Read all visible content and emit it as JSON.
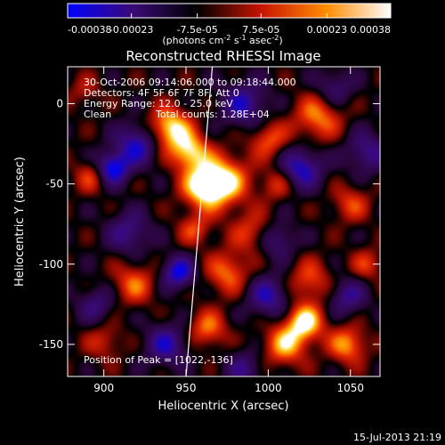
{
  "colorbar": {
    "ticks": [
      "-0.00038",
      "-0.00023",
      "-7.5e-05",
      "7.5e-05",
      "0.00023",
      "0.00038"
    ],
    "tick_values": [
      -0.00038,
      -0.00023,
      -7.5e-05,
      7.5e-05,
      0.00023,
      0.00038
    ],
    "range": [
      -0.00038,
      0.00038
    ],
    "unit_main": "(photons cm",
    "unit_exp1": "-2",
    "unit_mid": " s",
    "unit_exp2": "-1",
    "unit_tail": " asec",
    "unit_exp3": "-2",
    "unit_close": ")",
    "colors": [
      "#0000ff",
      "#3a0a78",
      "#000000",
      "#c81400",
      "#ff8c00",
      "#ffffff"
    ]
  },
  "chart_data": {
    "type": "heatmap",
    "title": "Reconstructed RHESSI Image",
    "xlabel": "Heliocentric X (arcsec)",
    "ylabel": "Heliocentric Y (arcsec)",
    "xlim": [
      878,
      1068
    ],
    "ylim": [
      -170,
      23
    ],
    "xticks": [
      900,
      950,
      1000,
      1050
    ],
    "yticks": [
      0,
      -50,
      -100,
      -150
    ],
    "grid": false,
    "annotations": {
      "time_range": "30-Oct-2006 09:14:06.000 to 09:18:44.000",
      "detectors": "Detectors: 4F 5F 6F 7F 8F, Att 0",
      "energy_range": "Energy Range: 12.0 - 25.0 keV",
      "clean_label": "Clean",
      "total_counts": "Total counts: 1.28E+04",
      "peak": "Position of Peak = [1022,-136]"
    },
    "peak_position": [
      1022,
      -136
    ],
    "limb_line": [
      [
        950,
        -170
      ],
      [
        966,
        23
      ]
    ],
    "blobs": [
      {
        "x": 940,
        "y": -15,
        "v": 1.0,
        "s": 9
      },
      {
        "x": 952,
        "y": -30,
        "v": 0.9,
        "s": 8
      },
      {
        "x": 972,
        "y": -48,
        "v": 1.0,
        "s": 11
      },
      {
        "x": 960,
        "y": -52,
        "v": 0.85,
        "s": 9
      },
      {
        "x": 1030,
        "y": -8,
        "v": 0.7,
        "s": 10
      },
      {
        "x": 1000,
        "y": -22,
        "v": 0.6,
        "s": 8
      },
      {
        "x": 892,
        "y": -45,
        "v": 0.5,
        "s": 7
      },
      {
        "x": 918,
        "y": -112,
        "v": 0.6,
        "s": 9
      },
      {
        "x": 975,
        "y": -105,
        "v": 0.65,
        "s": 9
      },
      {
        "x": 990,
        "y": -80,
        "v": 0.5,
        "s": 9
      },
      {
        "x": 1050,
        "y": -62,
        "v": 0.5,
        "s": 8
      },
      {
        "x": 1025,
        "y": -110,
        "v": 0.55,
        "s": 9
      },
      {
        "x": 1022,
        "y": -136,
        "v": 1.0,
        "s": 8
      },
      {
        "x": 1010,
        "y": -150,
        "v": 0.8,
        "s": 9
      },
      {
        "x": 1048,
        "y": -150,
        "v": 0.75,
        "s": 8
      },
      {
        "x": 963,
        "y": -140,
        "v": 0.65,
        "s": 8
      },
      {
        "x": 900,
        "y": -148,
        "v": 0.4,
        "s": 8
      },
      {
        "x": 888,
        "y": 8,
        "v": 0.3,
        "s": 7
      },
      {
        "x": 1060,
        "y": -100,
        "v": 0.45,
        "s": 7
      },
      {
        "x": 955,
        "y": -78,
        "v": 0.5,
        "s": 7
      },
      {
        "x": 1005,
        "y": -50,
        "v": 0.45,
        "s": 7
      },
      {
        "x": 915,
        "y": -80,
        "v": -0.6,
        "s": 9
      },
      {
        "x": 905,
        "y": -40,
        "v": -1.0,
        "s": 7
      },
      {
        "x": 920,
        "y": -25,
        "v": -0.8,
        "s": 9
      },
      {
        "x": 985,
        "y": 0,
        "v": -0.7,
        "s": 10
      },
      {
        "x": 1020,
        "y": -40,
        "v": -0.8,
        "s": 9
      },
      {
        "x": 1060,
        "y": -30,
        "v": -0.6,
        "s": 9
      },
      {
        "x": 945,
        "y": -105,
        "v": -0.9,
        "s": 7
      },
      {
        "x": 1000,
        "y": -120,
        "v": -0.7,
        "s": 9
      },
      {
        "x": 1048,
        "y": -120,
        "v": -0.6,
        "s": 8
      },
      {
        "x": 938,
        "y": -150,
        "v": -0.7,
        "s": 9
      },
      {
        "x": 985,
        "y": -165,
        "v": -0.5,
        "s": 8
      },
      {
        "x": 1040,
        "y": 10,
        "v": -0.5,
        "s": 8
      },
      {
        "x": 1005,
        "y": -85,
        "v": -0.55,
        "s": 8
      },
      {
        "x": 895,
        "y": -125,
        "v": -0.5,
        "s": 8
      }
    ]
  },
  "footer": {
    "timestamp": "15-Jul-2013 21:19"
  }
}
